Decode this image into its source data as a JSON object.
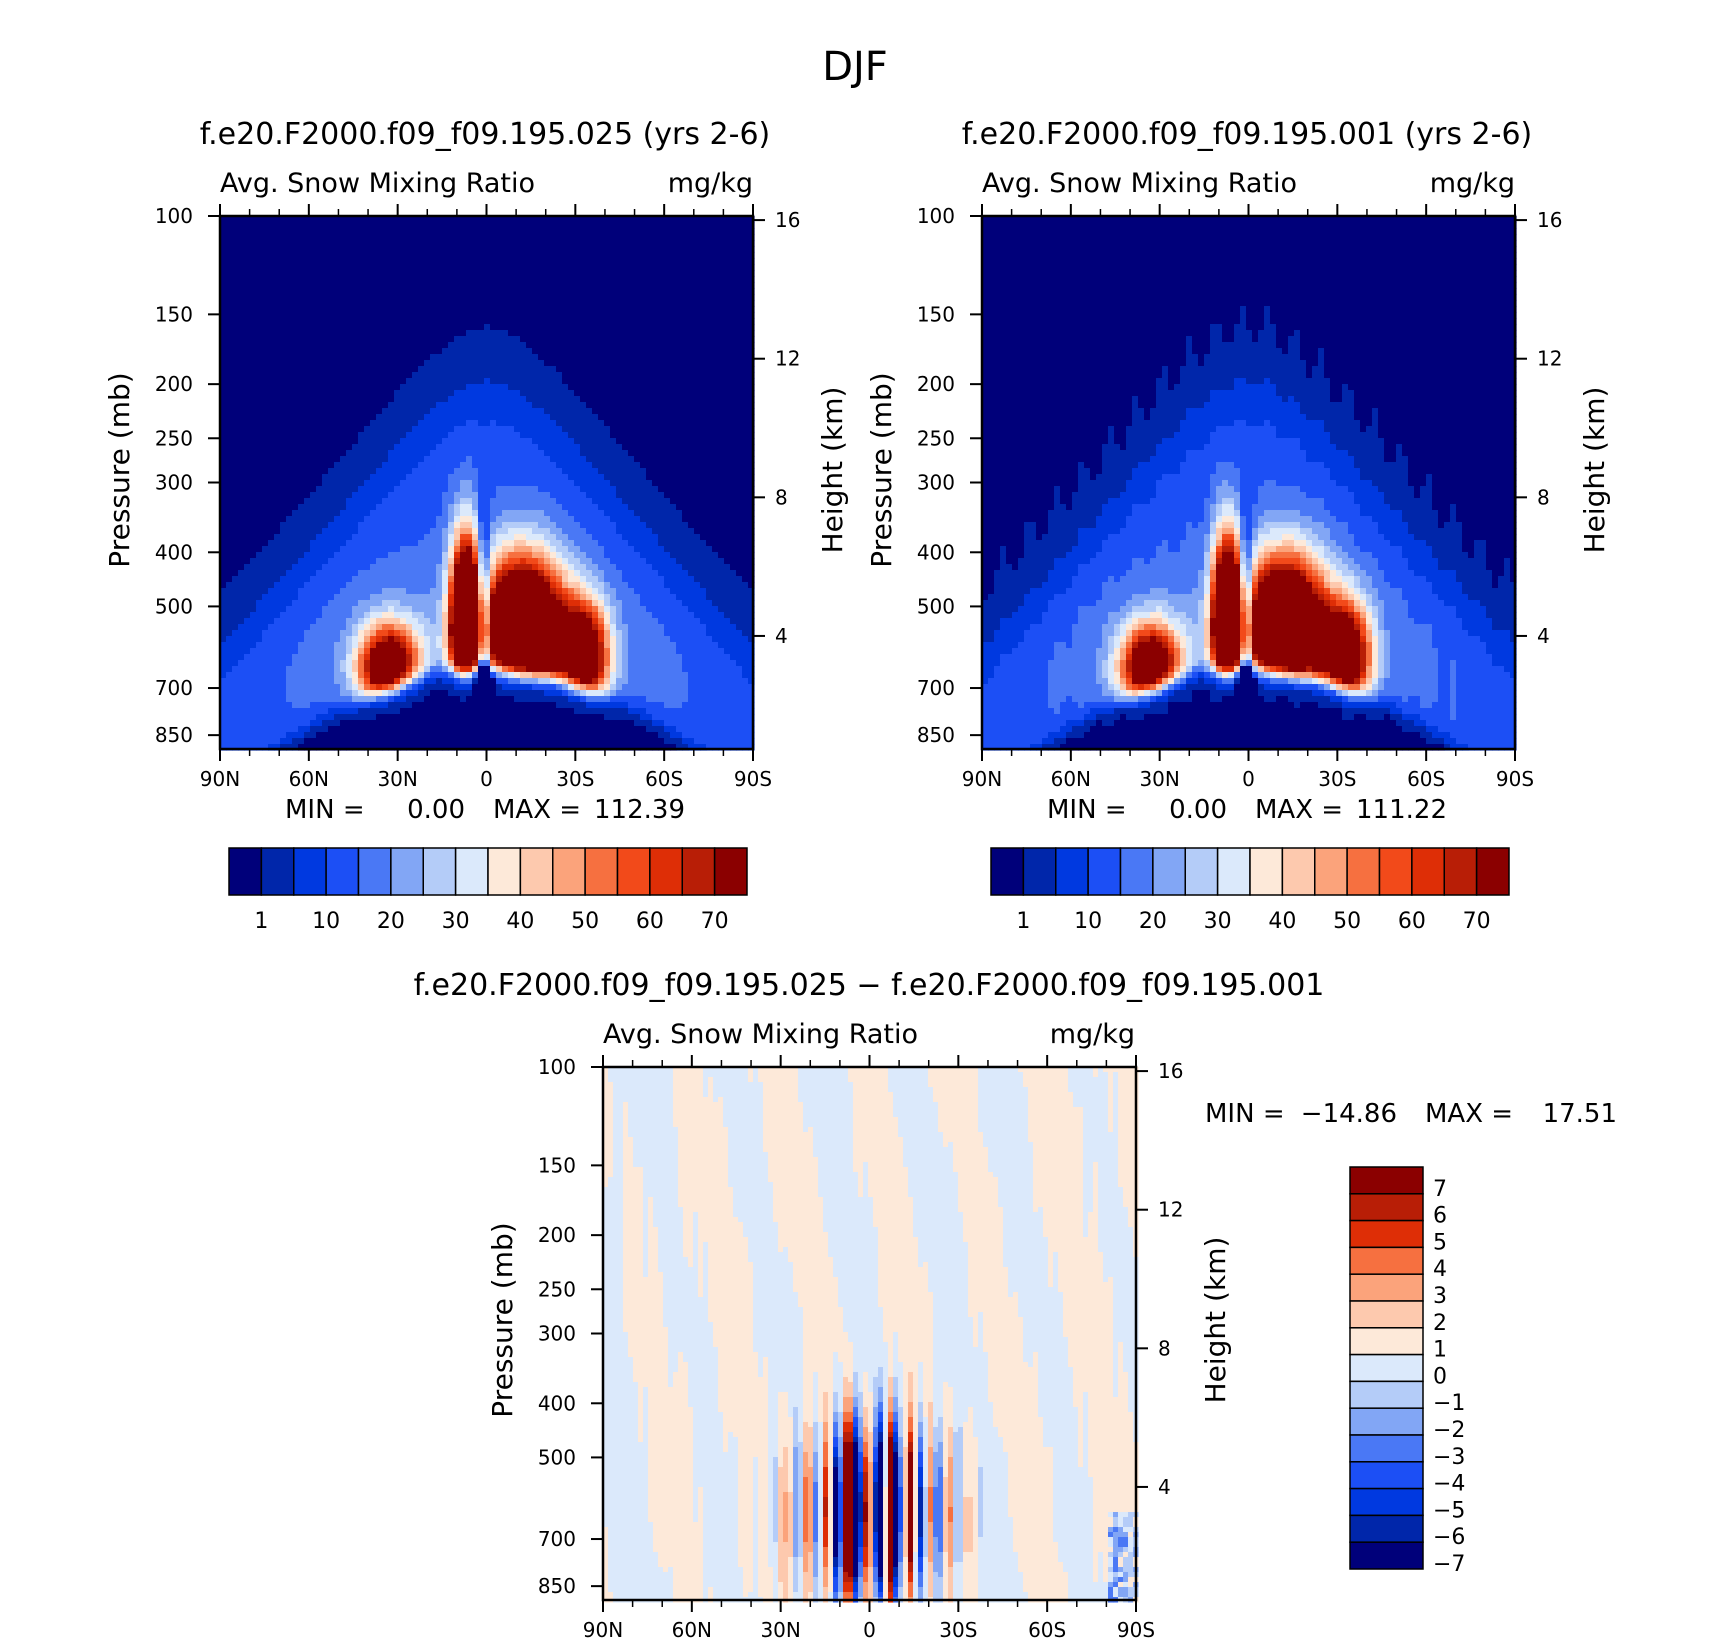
{
  "page_title": "DJF",
  "colors": {
    "abs_palette": [
      "#00007a",
      "#0026aa",
      "#0039e0",
      "#1c4ff5",
      "#4a78f5",
      "#82a6f5",
      "#b4ccf8",
      "#dbe9fb",
      "#fde9d9",
      "#fdc9ae",
      "#fba37b",
      "#f67040",
      "#f24a1a",
      "#de2e06",
      "#b81e06",
      "#8b0000"
    ],
    "diff_palette": [
      "#00007a",
      "#0026aa",
      "#0039e0",
      "#1c4ff5",
      "#4a78f5",
      "#82a6f5",
      "#b4ccf8",
      "#dbe9fb",
      "#fde9d9",
      "#fdc9ae",
      "#fba37b",
      "#f67040",
      "#de2e06",
      "#b81e06",
      "#8b0000"
    ]
  },
  "chart_data": [
    {
      "type": "heatmap",
      "title": "f.e20.F2000.f09_f09.195.025 (yrs 2-6)",
      "left_label": "Avg. Snow Mixing Ratio",
      "right_label": "mg/kg",
      "ylabel": "Pressure (mb)",
      "y2label": "Height (km)",
      "x_ticks": [
        "90N",
        "60N",
        "30N",
        "0",
        "30S",
        "60S",
        "90S"
      ],
      "y_ticks": [
        "100",
        "150",
        "200",
        "250",
        "300",
        "400",
        "500",
        "700",
        "850"
      ],
      "y2_ticks": [
        "16",
        "12",
        "8",
        "4"
      ],
      "ylim": [
        100,
        900
      ],
      "stats": {
        "min_label": "MIN =",
        "min": "0.00",
        "max_label": "MAX =",
        "max": "112.39"
      },
      "colorbar": {
        "labels": [
          "1",
          "10",
          "20",
          "30",
          "40",
          "50",
          "60",
          "70"
        ]
      },
      "field": {
        "peak_lat_north": -12,
        "peak_lat_south": 22,
        "peak_p": 560,
        "max_value": 112.39
      }
    },
    {
      "type": "heatmap",
      "title": "f.e20.F2000.f09_f09.195.001 (yrs 2-6)",
      "left_label": "Avg. Snow Mixing Ratio",
      "right_label": "mg/kg",
      "ylabel": "Pressure (mb)",
      "y2label": "Height (km)",
      "x_ticks": [
        "90N",
        "60N",
        "30N",
        "0",
        "30S",
        "60S",
        "90S"
      ],
      "y_ticks": [
        "100",
        "150",
        "200",
        "250",
        "300",
        "400",
        "500",
        "700",
        "850"
      ],
      "y2_ticks": [
        "16",
        "12",
        "8",
        "4"
      ],
      "ylim": [
        100,
        900
      ],
      "stats": {
        "min_label": "MIN =",
        "min": "0.00",
        "max_label": "MAX =",
        "max": "111.22"
      },
      "colorbar": {
        "labels": [
          "1",
          "10",
          "20",
          "30",
          "40",
          "50",
          "60",
          "70"
        ]
      },
      "field": {
        "peak_lat_north": -12,
        "peak_lat_south": 22,
        "peak_p": 560,
        "max_value": 111.22
      }
    },
    {
      "type": "heatmap",
      "title": "f.e20.F2000.f09_f09.195.025 − f.e20.F2000.f09_f09.195.001",
      "left_label": "Avg. Snow Mixing Ratio",
      "right_label": "mg/kg",
      "ylabel": "Pressure (mb)",
      "y2label": "Height (km)",
      "x_ticks": [
        "90N",
        "60N",
        "30N",
        "0",
        "30S",
        "60S",
        "90S"
      ],
      "y_ticks": [
        "100",
        "150",
        "200",
        "250",
        "300",
        "400",
        "500",
        "700",
        "850"
      ],
      "y2_ticks": [
        "16",
        "12",
        "8",
        "4"
      ],
      "ylim": [
        100,
        900
      ],
      "stats": {
        "min_label": "MIN =",
        "min": "−14.86",
        "max_label": "MAX =",
        "max": "17.51"
      },
      "colorbar": {
        "labels": [
          "7",
          "6",
          "5",
          "4",
          "3",
          "2",
          "1",
          "0",
          "−1",
          "−2",
          "−3",
          "−4",
          "−5",
          "−6",
          "−7"
        ]
      },
      "field": {
        "min_value": -14.86,
        "max_value": 17.51
      }
    }
  ]
}
